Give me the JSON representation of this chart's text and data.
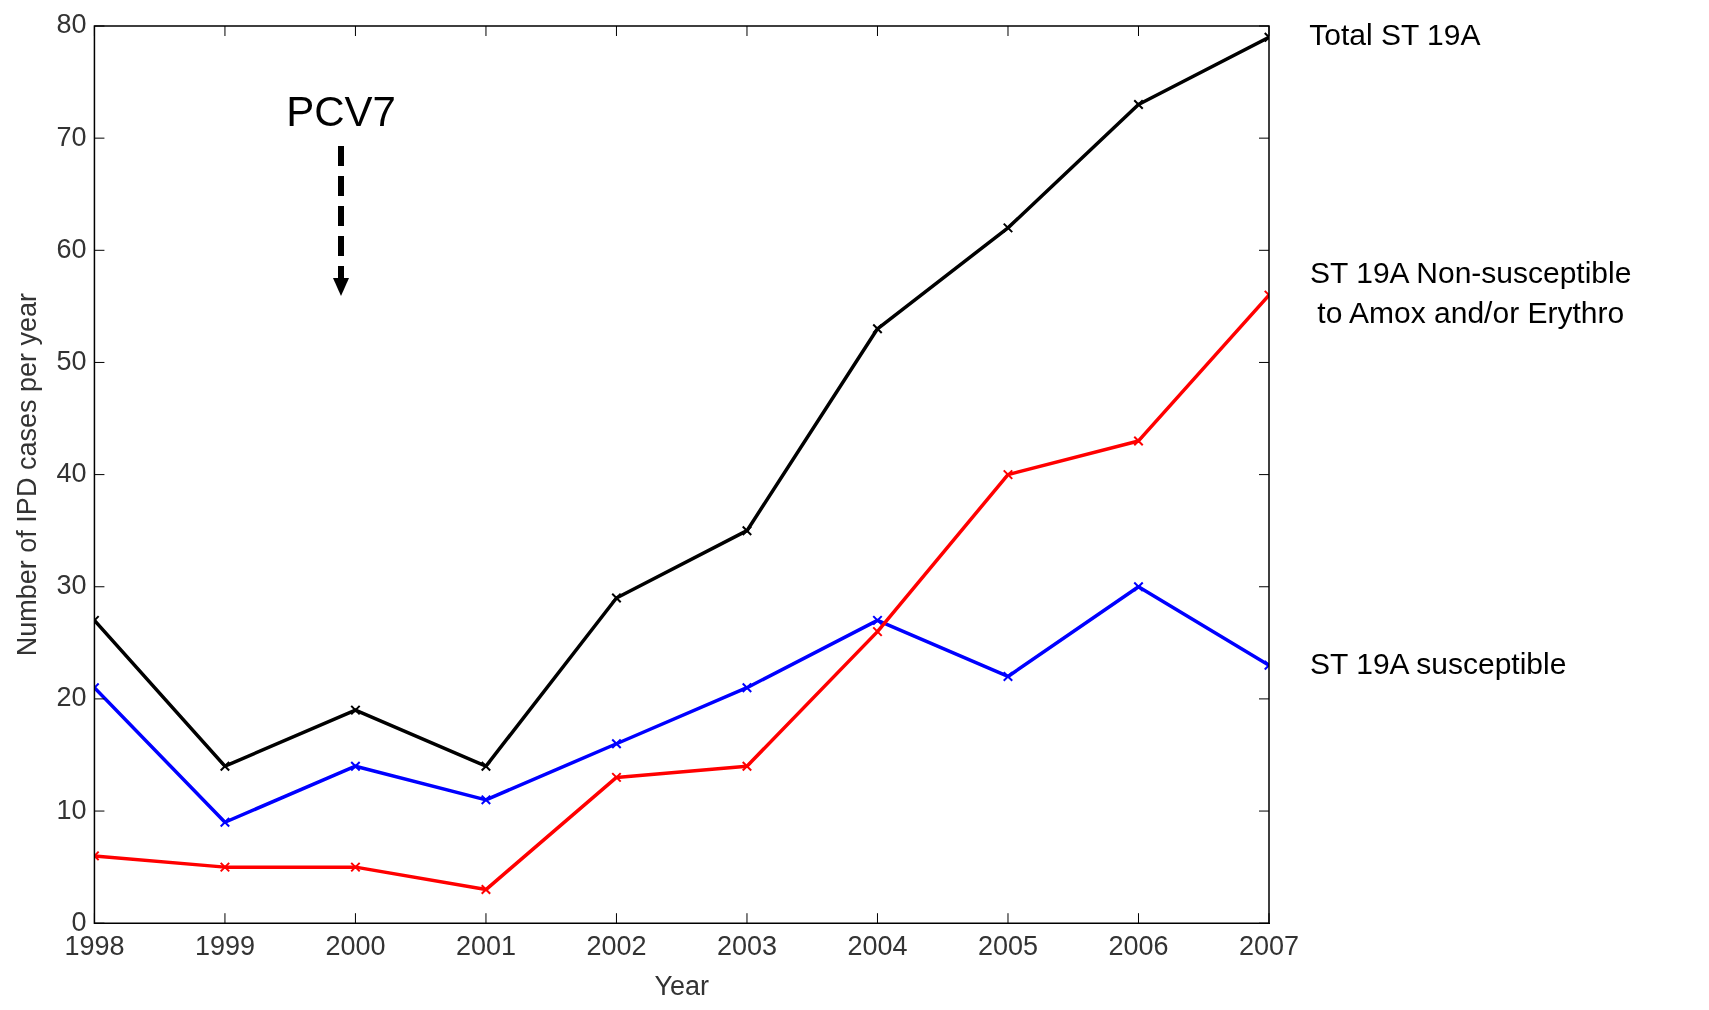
{
  "chart_data": {
    "type": "line",
    "xlabel": "Year",
    "ylabel": "Number of IPD cases per year",
    "x": [
      1998,
      1999,
      2000,
      2001,
      2002,
      2003,
      2004,
      2005,
      2006,
      2007
    ],
    "series": [
      {
        "name": "Total ST 19A",
        "color": "#000000",
        "values": [
          27,
          14,
          19,
          14,
          29,
          35,
          53,
          62,
          73,
          79
        ]
      },
      {
        "name": "ST 19A Non-susceptible to Amox and/or Erythro",
        "color": "#ff0000",
        "values": [
          6,
          5,
          5,
          3,
          13,
          14,
          26,
          40,
          43,
          56
        ]
      },
      {
        "name": "ST 19A susceptible",
        "color": "#0000ff",
        "values": [
          21,
          9,
          14,
          11,
          16,
          21,
          27,
          22,
          30,
          23
        ]
      }
    ],
    "xlim": [
      1998,
      2007
    ],
    "xticks": [
      1998,
      1999,
      2000,
      2001,
      2002,
      2003,
      2004,
      2005,
      2006,
      2007
    ],
    "ylim": [
      0,
      80
    ],
    "yticks": [
      0,
      10,
      20,
      30,
      40,
      50,
      60,
      70,
      80
    ],
    "annotations": [
      "PCV7"
    ],
    "grid": false,
    "marker": "cross",
    "line_style": "solid"
  }
}
